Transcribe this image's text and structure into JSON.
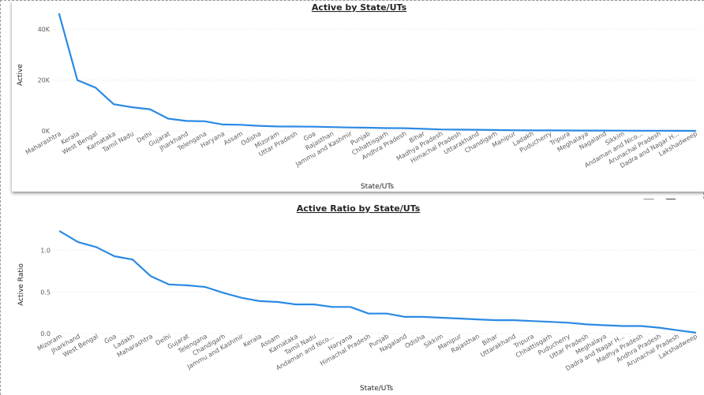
{
  "colors": {
    "line": "#2b8ae3",
    "grid": "#e6e6e6",
    "text": "#605e5c"
  },
  "header": {
    "filter_icon": "filter-icon",
    "focus_icon": "focus-mode-icon",
    "more_icon": "more-options-icon"
  },
  "chart_data": [
    {
      "type": "line",
      "title": "Active by State/UTs",
      "xlabel": "State/UTs",
      "ylabel": "Active",
      "ylim": [
        0,
        45000
      ],
      "yticks": [
        0,
        20000,
        40000
      ],
      "ytick_labels": [
        "0K",
        "20K",
        "40K"
      ],
      "grid": true,
      "categories": [
        "Maharashtra",
        "Kerala",
        "West Bengal",
        "Karnataka",
        "Tamil Nadu",
        "Delhi",
        "Gujarat",
        "Jharkhand",
        "Telengana",
        "Haryana",
        "Assam",
        "Odisha",
        "Mizoram",
        "Uttar Pradesh",
        "Goa",
        "Rajasthan",
        "Jammu and Kashmir",
        "Punjab",
        "Chhattisgarh",
        "Andhra Pradesh",
        "Bihar",
        "Madhya Pradesh",
        "Himachal Pradesh",
        "Uttarakhand",
        "Chandigarh",
        "Manipur",
        "Ladakh",
        "Puducherry",
        "Tripura",
        "Meghalaya",
        "Nagaland",
        "Sikkim",
        "Andaman and Nico...",
        "Arunachal Pradesh",
        "Dadra and Nagar H...",
        "Lakshadweep"
      ],
      "series": [
        {
          "values": [
            46000,
            20000,
            17000,
            10500,
            9300,
            8500,
            4800,
            3900,
            3800,
            2500,
            2400,
            2000,
            1750,
            1700,
            1650,
            1500,
            1350,
            1250,
            1100,
            1050,
            800,
            550,
            500,
            450,
            350,
            250,
            200,
            180,
            150,
            130,
            110,
            90,
            70,
            50,
            30,
            10
          ]
        }
      ]
    },
    {
      "type": "line",
      "title": "Active Ratio by State/UTs",
      "xlabel": "State/UTs",
      "ylabel": "Active Ratio",
      "ylim": [
        0,
        1.3
      ],
      "yticks": [
        0,
        0.5,
        1.0
      ],
      "ytick_labels": [
        "0.0",
        "0.5",
        "1.0"
      ],
      "grid": true,
      "categories": [
        "Mizoram",
        "Jharkhand",
        "West Bengal",
        "Goa",
        "Ladakh",
        "Maharashtra",
        "Delhi",
        "Gujarat",
        "Telengana",
        "Chandigarh",
        "Jammu and Kashmir",
        "Kerala",
        "Assam",
        "Karnataka",
        "Tamil Nadu",
        "Andaman and Nico...",
        "Haryana",
        "Himachal Pradesh",
        "Punjab",
        "Nagaland",
        "Odisha",
        "Sikkim",
        "Manipur",
        "Rajasthan",
        "Bihar",
        "Uttarakhand",
        "Tripura",
        "Chhattisgarh",
        "Puducherry",
        "Uttar Pradesh",
        "Meghalaya",
        "Dadra and Nagar H...",
        "Madhya Pradesh",
        "Andhra Pradesh",
        "Arunachal Pradesh",
        "Lakshadweep"
      ],
      "series": [
        {
          "values": [
            1.23,
            1.1,
            1.04,
            0.93,
            0.89,
            0.69,
            0.59,
            0.58,
            0.56,
            0.49,
            0.43,
            0.39,
            0.38,
            0.35,
            0.35,
            0.32,
            0.32,
            0.24,
            0.24,
            0.2,
            0.2,
            0.19,
            0.18,
            0.17,
            0.16,
            0.16,
            0.15,
            0.14,
            0.13,
            0.11,
            0.1,
            0.09,
            0.09,
            0.07,
            0.04,
            0.01
          ]
        }
      ]
    }
  ]
}
